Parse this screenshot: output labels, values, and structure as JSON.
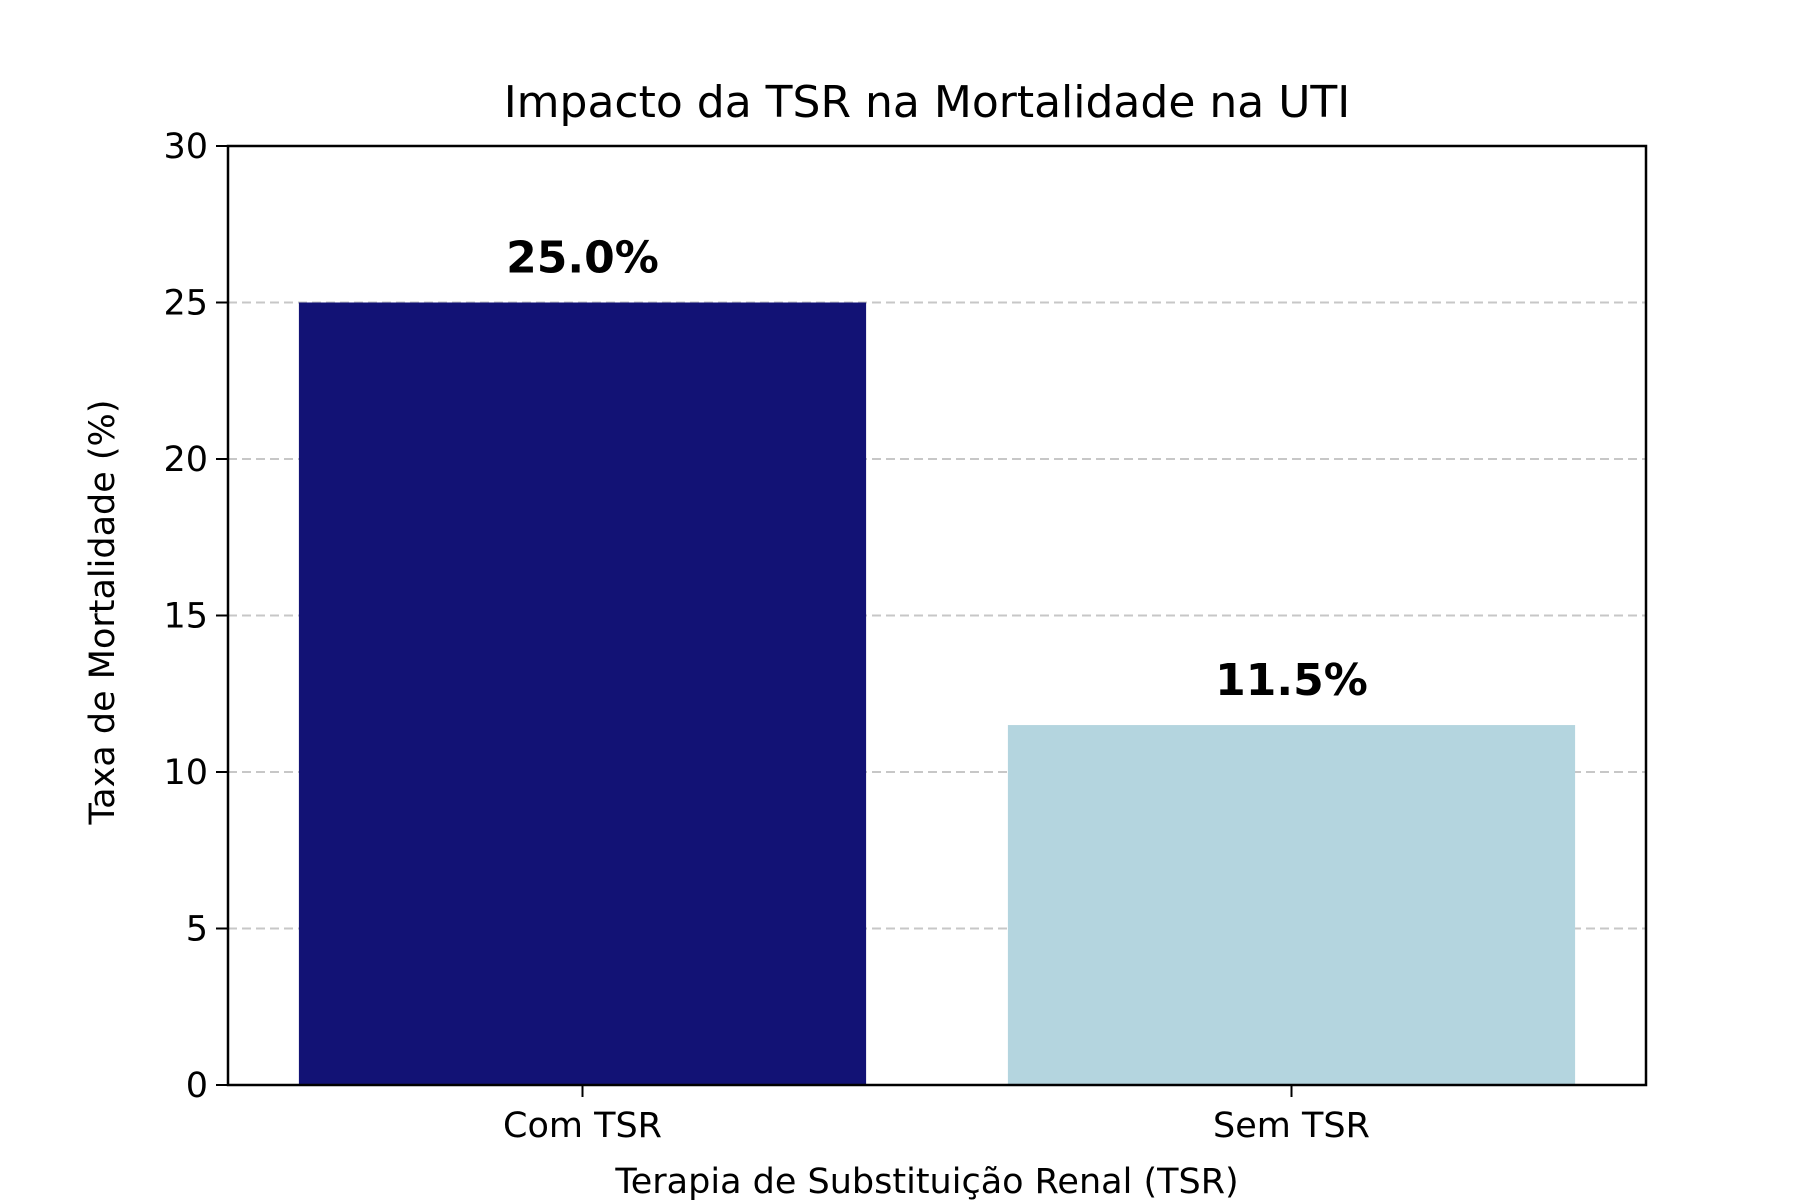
{
  "chart_data": {
    "type": "bar",
    "title": "Impacto da TSR na Mortalidade na UTI",
    "xlabel": "Terapia de Substituição Renal (TSR)",
    "ylabel": "Taxa de Mortalidade (%)",
    "categories": [
      "Com TSR",
      "Sem TSR"
    ],
    "values": [
      25.0,
      11.5
    ],
    "data_labels": [
      "25.0%",
      "11.5%"
    ],
    "colors": [
      "#121275",
      "#b4d5df"
    ],
    "ylim": [
      0,
      30
    ],
    "yticks": [
      0,
      5,
      10,
      15,
      20,
      25,
      30
    ],
    "ytick_labels": [
      "0",
      "5",
      "10",
      "15",
      "20",
      "25",
      "30"
    ],
    "grid": "y-dashed",
    "legend": "none"
  }
}
